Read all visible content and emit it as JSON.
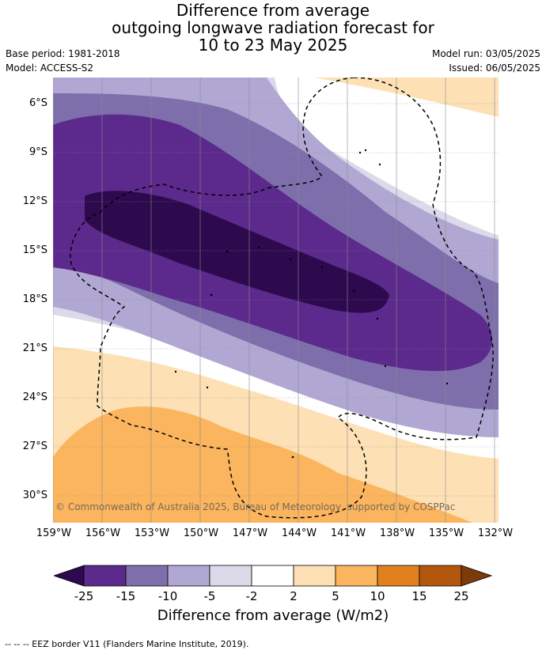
{
  "header": {
    "title_line1": "Difference from average",
    "title_line2": "outgoing longwave radiation forecast for",
    "title_line3": "10 to 23 May 2025",
    "base_period": "Base period: 1981-2018",
    "model": "Model: ACCESS-S2",
    "model_run": "Model run: 03/05/2025",
    "issued": "Issued: 06/05/2025"
  },
  "map": {
    "lat_labels": [
      "6°S",
      "9°S",
      "12°S",
      "15°S",
      "18°S",
      "21°S",
      "24°S",
      "27°S",
      "30°S"
    ],
    "lon_labels": [
      "159°W",
      "156°W",
      "153°W",
      "150°W",
      "147°W",
      "144°W",
      "141°W",
      "138°W",
      "135°W",
      "132°W"
    ],
    "copyright": "© Commonwealth of Australia 2025, Bureau of Meteorology, supported by COSPPac"
  },
  "legend": {
    "tick_labels": [
      "-25",
      "-15",
      "-10",
      "-5",
      "-2",
      "2",
      "5",
      "10",
      "15",
      "25"
    ],
    "title": "Difference from average (W/m2)",
    "colors": [
      "#2d0a4e",
      "#5c2a8c",
      "#7e6fac",
      "#b0a8d2",
      "#dadaea",
      "#ffffff",
      "#fde0b4",
      "#fbb55f",
      "#e0811d",
      "#b3570e",
      "#7c3b0b"
    ]
  },
  "footer": {
    "eez_note": "--  --  -- EEZ border V11 (Flanders Marine Institute, 2019)."
  }
}
